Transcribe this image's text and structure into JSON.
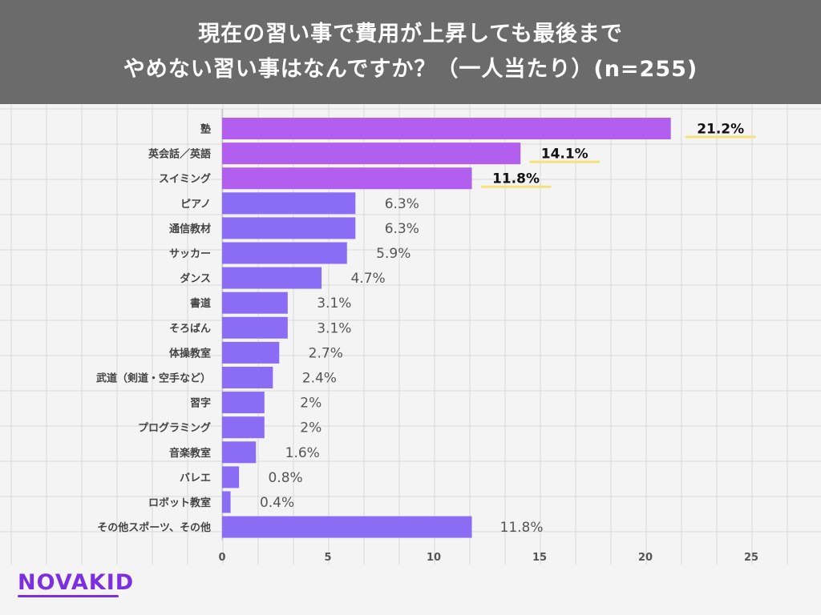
{
  "title": {
    "line1": "現在の習い事で費用が上昇しても最後まで",
    "line2": "やめない習い事はなんですか？（一人当たり）(n=255)"
  },
  "logo": {
    "text": "NOVAKID"
  },
  "colors": {
    "header_bg": "#6b6b6b",
    "top_bar": "#b25ff0",
    "bar": "#8a6cf5",
    "highlight": "#f5e27a",
    "grid": "#d9d9d9"
  },
  "chart_data": {
    "type": "bar",
    "orientation": "horizontal",
    "categories": [
      "塾",
      "英会話／英語",
      "スイミング",
      "ピアノ",
      "通信教材",
      "サッカー",
      "ダンス",
      "書道",
      "そろばん",
      "体操教室",
      "武道（剣道・空手など）",
      "習字",
      "プログラミング",
      "音楽教室",
      "バレエ",
      "ロボット教室",
      "その他スポーツ、その他"
    ],
    "values": [
      21.2,
      14.1,
      11.8,
      6.3,
      6.3,
      5.9,
      4.7,
      3.1,
      3.1,
      2.7,
      2.4,
      2,
      2,
      1.6,
      0.8,
      0.4,
      11.8
    ],
    "labels": [
      "21.2%",
      "14.1%",
      "11.8%",
      "6.3%",
      "6.3%",
      "5.9%",
      "4.7%",
      "3.1%",
      "3.1%",
      "2.7%",
      "2.4%",
      "2%",
      "2%",
      "1.6%",
      "0.8%",
      "0.4%",
      "11.8%"
    ],
    "highlighted_top": 3,
    "xticks": [
      0,
      5,
      10,
      15,
      20,
      25
    ],
    "xlim": [
      0,
      25
    ],
    "grid": true
  }
}
